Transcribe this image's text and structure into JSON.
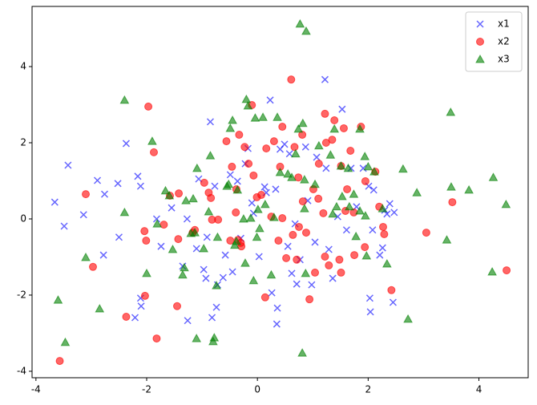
{
  "chart_data": {
    "type": "scatter",
    "xlim": [
      -4.07,
      4.89
    ],
    "ylim": [
      -4.17,
      5.58
    ],
    "xticks": [
      -4,
      -2,
      0,
      2,
      4
    ],
    "yticks": [
      -4,
      -2,
      0,
      2,
      4
    ],
    "legend": "upper right",
    "series": [
      {
        "name": "x1",
        "color": "#0000ff",
        "marker": "x",
        "x": [
          -3.66,
          -3.49,
          -3.42,
          -3.14,
          -2.89,
          -2.76,
          -2.78,
          -2.5,
          -2.52,
          -2.37,
          -2.21,
          -2.16,
          -2.11,
          -2.11,
          -2.1,
          -1.82,
          -1.74,
          -1.55,
          -1.35,
          -1.27,
          -1.26,
          -1.1,
          -1.06,
          -0.97,
          -0.93,
          -0.91,
          -0.85,
          -0.82,
          -0.77,
          -0.74,
          -0.72,
          -0.62,
          -0.58,
          -0.49,
          -0.45,
          -0.36,
          -0.3,
          -0.22,
          -0.17,
          -0.1,
          -0.07,
          0.03,
          0.13,
          0.16,
          0.23,
          0.26,
          0.33,
          0.35,
          0.36,
          0.41,
          0.49,
          0.55,
          0.58,
          0.62,
          0.68,
          0.71,
          0.77,
          0.87,
          0.91,
          0.98,
          1.04,
          1.07,
          1.22,
          1.24,
          1.29,
          1.36,
          1.45,
          1.53,
          1.61,
          1.69,
          1.79,
          1.91,
          2.01,
          2.03,
          2.04,
          2.08,
          2.1,
          2.26,
          2.3,
          2.34,
          2.39,
          2.45,
          2.47,
          2.21
        ],
        "y": [
          0.44,
          -0.19,
          1.41,
          0.11,
          1.01,
          0.65,
          -0.95,
          -0.48,
          0.93,
          1.98,
          -2.59,
          1.12,
          0.86,
          -2.08,
          -2.29,
          0.0,
          -0.72,
          0.29,
          -1.24,
          0.0,
          -2.67,
          -0.78,
          1.05,
          -1.33,
          -1.56,
          -0.48,
          2.55,
          -2.59,
          0.86,
          -2.32,
          -1.73,
          -1.54,
          -0.95,
          1.16,
          -1.39,
          0.99,
          -0.51,
          1.45,
          1.85,
          0.42,
          0.15,
          -0.99,
          0.84,
          0.69,
          3.12,
          -1.94,
          0.78,
          -2.76,
          -2.34,
          1.83,
          1.96,
          -0.72,
          1.71,
          -1.43,
          -0.13,
          -1.71,
          -1.07,
          1.89,
          0.48,
          -1.73,
          -0.61,
          1.62,
          3.66,
          1.33,
          -0.8,
          -1.56,
          0.06,
          2.88,
          -0.29,
          1.33,
          0.32,
          1.33,
          0.86,
          -2.08,
          -2.44,
          -0.29,
          0.76,
          -0.76,
          0.23,
          0.13,
          0.4,
          -2.19,
          0.17,
          -0.95
        ]
      },
      {
        "name": "x2",
        "color": "#ff0000",
        "marker": "o",
        "x": [
          -3.57,
          -3.1,
          -2.97,
          -2.37,
          -2.04,
          -2.01,
          -2.03,
          -1.97,
          -1.87,
          -1.82,
          -1.69,
          -1.58,
          -1.45,
          -1.43,
          -1.42,
          -1.17,
          -1.13,
          -0.96,
          -0.88,
          -0.84,
          -0.82,
          -0.71,
          -0.56,
          -0.49,
          -0.46,
          -0.39,
          -0.38,
          -0.35,
          -0.33,
          -0.3,
          -0.29,
          -0.23,
          -0.16,
          -0.1,
          -0.07,
          -0.01,
          0.07,
          0.14,
          0.16,
          0.25,
          0.3,
          0.38,
          0.41,
          0.45,
          0.45,
          0.52,
          0.61,
          0.64,
          0.67,
          0.71,
          0.74,
          0.75,
          0.81,
          0.82,
          0.88,
          0.94,
          1.01,
          1.04,
          1.1,
          1.11,
          1.19,
          1.22,
          1.22,
          1.24,
          1.29,
          1.35,
          1.39,
          1.48,
          1.51,
          1.51,
          1.56,
          1.59,
          1.62,
          1.68,
          1.74,
          1.75,
          1.87,
          1.94,
          1.95,
          2.13,
          2.2,
          2.27,
          2.29,
          2.42,
          3.05,
          3.52,
          4.5
        ],
        "y": [
          -3.73,
          0.65,
          -1.26,
          -2.57,
          -0.32,
          -0.57,
          -2.02,
          2.95,
          1.75,
          -3.14,
          -0.15,
          0.61,
          -2.29,
          -0.53,
          0.67,
          -0.36,
          -0.29,
          0.95,
          0.69,
          0.55,
          -0.02,
          -0.02,
          2.04,
          -0.57,
          1.37,
          0.17,
          0.78,
          -0.55,
          2.21,
          -0.63,
          -0.72,
          1.89,
          1.45,
          2.99,
          1.14,
          0.57,
          0.63,
          -2.06,
          1.85,
          0.06,
          2.04,
          -0.57,
          1.37,
          2.42,
          0.02,
          -1.03,
          3.66,
          -0.42,
          1.89,
          -1.07,
          1.09,
          -0.21,
          2.21,
          0.46,
          -0.36,
          -2.11,
          0.78,
          -1.41,
          0.53,
          1.45,
          0.15,
          2.76,
          -0.99,
          2.0,
          -1.22,
          2.08,
          2.59,
          -1.07,
          -1.41,
          1.39,
          2.38,
          0.21,
          0.78,
          1.79,
          0.17,
          -0.95,
          2.42,
          -0.74,
          0.99,
          1.24,
          0.32,
          -0.21,
          -0.4,
          -1.87,
          -0.36,
          0.44,
          -1.35
        ]
      },
      {
        "name": "x3",
        "color": "#008000",
        "marker": "^",
        "x": [
          -3.6,
          -3.47,
          -3.1,
          -2.85,
          -2.4,
          -2.4,
          -2.0,
          -1.9,
          -1.81,
          -1.66,
          -1.59,
          -1.53,
          -1.35,
          -1.32,
          -1.29,
          -1.2,
          -1.16,
          -1.13,
          -1.1,
          -1.09,
          -0.97,
          -0.88,
          -0.85,
          -0.8,
          -0.78,
          -0.74,
          -0.72,
          -0.55,
          -0.52,
          -0.49,
          -0.45,
          -0.41,
          -0.38,
          -0.36,
          -0.25,
          -0.22,
          -0.2,
          -0.17,
          -0.12,
          -0.07,
          -0.04,
          -0.01,
          0.01,
          0.04,
          0.1,
          0.14,
          0.25,
          0.3,
          0.36,
          0.41,
          0.55,
          0.62,
          0.69,
          0.74,
          0.77,
          0.81,
          0.82,
          0.85,
          0.85,
          0.88,
          0.87,
          1.04,
          1.11,
          1.32,
          1.36,
          1.39,
          1.43,
          1.51,
          1.53,
          1.64,
          1.66,
          1.74,
          1.78,
          1.85,
          1.85,
          1.94,
          1.95,
          1.97,
          2.0,
          2.11,
          2.26,
          2.34,
          2.63,
          2.72,
          2.88,
          3.42,
          3.49,
          3.5,
          3.82,
          4.24,
          4.26,
          4.49
        ],
        "y": [
          -2.13,
          -3.24,
          -1.01,
          -2.36,
          3.12,
          0.17,
          -1.43,
          2.04,
          -0.13,
          0.74,
          0.61,
          -0.8,
          -1.47,
          -1.28,
          0.48,
          -0.38,
          0.53,
          -0.36,
          -3.14,
          1.33,
          -0.78,
          0.19,
          1.66,
          -3.22,
          -3.12,
          -1.75,
          -0.48,
          0.86,
          0.91,
          2.38,
          2.59,
          -0.69,
          -0.59,
          0.76,
          0.0,
          -1.16,
          3.14,
          2.97,
          0.02,
          -1.62,
          2.65,
          -0.48,
          0.25,
          -0.25,
          2.67,
          0.38,
          -1.47,
          0.04,
          2.67,
          1.22,
          1.18,
          1.09,
          1.71,
          2.36,
          5.12,
          -3.52,
          2.51,
          1.03,
          0.27,
          4.93,
          -1.43,
          0.91,
          1.92,
          1.68,
          0.13,
          2.36,
          0.32,
          1.39,
          0.59,
          1.33,
          0.32,
          0.65,
          -0.46,
          0.21,
          2.36,
          1.64,
          0.08,
          -0.97,
          1.37,
          1.24,
          0.27,
          -1.18,
          1.31,
          -2.63,
          0.69,
          -0.55,
          2.8,
          0.84,
          0.76,
          -1.39,
          1.09,
          0.38
        ]
      }
    ]
  }
}
